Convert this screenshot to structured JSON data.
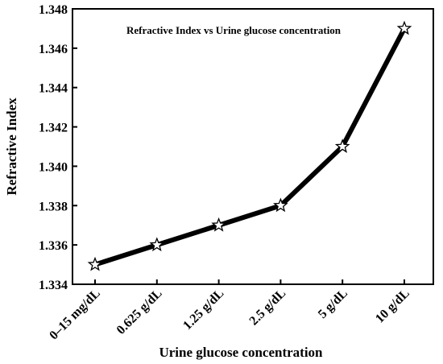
{
  "chart_data": {
    "type": "line",
    "title": "Refractive Index vs Urine glucose concentration",
    "xlabel": "Urine glucose concentration",
    "ylabel": "Refractive Index",
    "categories": [
      "0–15 mg/dL",
      "0.625 g/dL",
      "1.25 g/dL",
      "2.5 g/dL",
      "5 g/dL",
      "10 g/dL"
    ],
    "series": [
      {
        "values": [
          1.335,
          1.336,
          1.337,
          1.338,
          1.341,
          1.347
        ]
      }
    ],
    "ylim": [
      1.334,
      1.348
    ],
    "yticks": [
      "1.334",
      "1.336",
      "1.338",
      "1.340",
      "1.342",
      "1.344",
      "1.346",
      "1.348"
    ],
    "grid": false,
    "marker": "star",
    "line_color": "#000000",
    "marker_fill": "#ffffff"
  }
}
